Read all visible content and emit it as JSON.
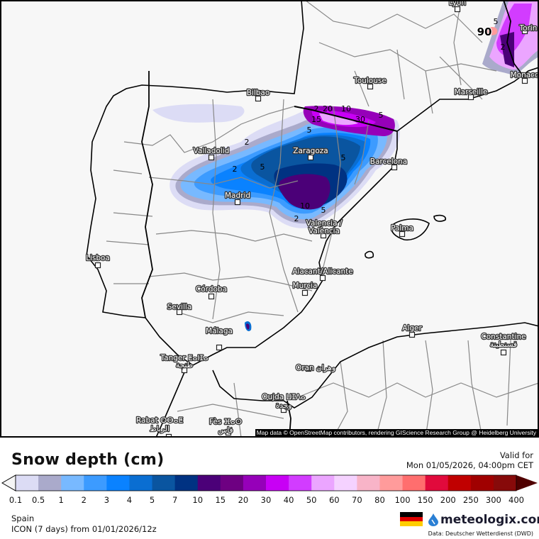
{
  "map": {
    "attribution": "Map data © OpenStreetMap contributors, rendering GIScience Research Group @ Heidelberg University",
    "cities": [
      {
        "name": "Lyon"
      },
      {
        "name": "Torin"
      },
      {
        "name": "Monaco"
      },
      {
        "name": "Marseille"
      },
      {
        "name": "Toulouse"
      },
      {
        "name": "Bilbao"
      },
      {
        "name": "Zaragoza"
      },
      {
        "name": "Valladolid"
      },
      {
        "name": "Barcelona"
      },
      {
        "name": "Madrid"
      },
      {
        "name": "Valencia /"
      },
      {
        "name": "València"
      },
      {
        "name": "Palma"
      },
      {
        "name": "Lisboa"
      },
      {
        "name": "Alacant/Alicante"
      },
      {
        "name": "Murcia"
      },
      {
        "name": "Córdoba"
      },
      {
        "name": "Sevilla"
      },
      {
        "name": "Málaga"
      },
      {
        "name": "Alger"
      },
      {
        "name": "Constantine"
      },
      {
        "name": "قسنطينة"
      },
      {
        "name": "Tanger ⵟⴰⵏⵊⴰ"
      },
      {
        "name": "طنجة"
      },
      {
        "name": "Oran وهران"
      },
      {
        "name": "Oujda ⵡⵊⴷⴰ"
      },
      {
        "name": "وجدة"
      },
      {
        "name": "Rabat ⵔⴱⴰⵟ"
      },
      {
        "name": "الرباط"
      },
      {
        "name": "Fès ⴼⴰⵙ"
      },
      {
        "name": "فاس"
      }
    ],
    "contour_labels": [
      "2",
      "2",
      "5",
      "5",
      "5",
      "10",
      "2",
      "20",
      "10",
      "15",
      "30",
      "5",
      "5",
      "2",
      "90",
      "5",
      "2"
    ]
  },
  "header": {
    "title": "Snow depth (cm)",
    "valid_label": "Valid for",
    "valid_time": "Mon 01/05/2026, 04:00pm CET"
  },
  "legend": {
    "ticks": [
      "0.1",
      "0.5",
      "1",
      "2",
      "3",
      "4",
      "5",
      "7",
      "10",
      "15",
      "20",
      "30",
      "40",
      "50",
      "60",
      "70",
      "80",
      "100",
      "150",
      "200",
      "250",
      "300",
      "400"
    ],
    "colors": [
      "#dcdcf5",
      "#aaaacb",
      "#78b9ff",
      "#3c9bff",
      "#0a82ff",
      "#0a6ed2",
      "#0a55a0",
      "#003282",
      "#4b0078",
      "#6e0082",
      "#9600b9",
      "#c800f5",
      "#d23cff",
      "#eba5ff",
      "#f5d2ff",
      "#f8b4c8",
      "#ff9b9b",
      "#ff6e6e",
      "#e10a3c",
      "#c00000",
      "#a00000",
      "#870a0a"
    ],
    "under_color": "#f5f5f5",
    "over_color": "#500000"
  },
  "footer": {
    "region": "Spain",
    "model": "ICON (7 days) from  01/01/2026/12z",
    "brand": "meteologix.com",
    "source": "Data: Deutscher Wetterdienst  (DWD)",
    "flag_colors": [
      "#000000",
      "#dd0000",
      "#ffce00"
    ]
  }
}
